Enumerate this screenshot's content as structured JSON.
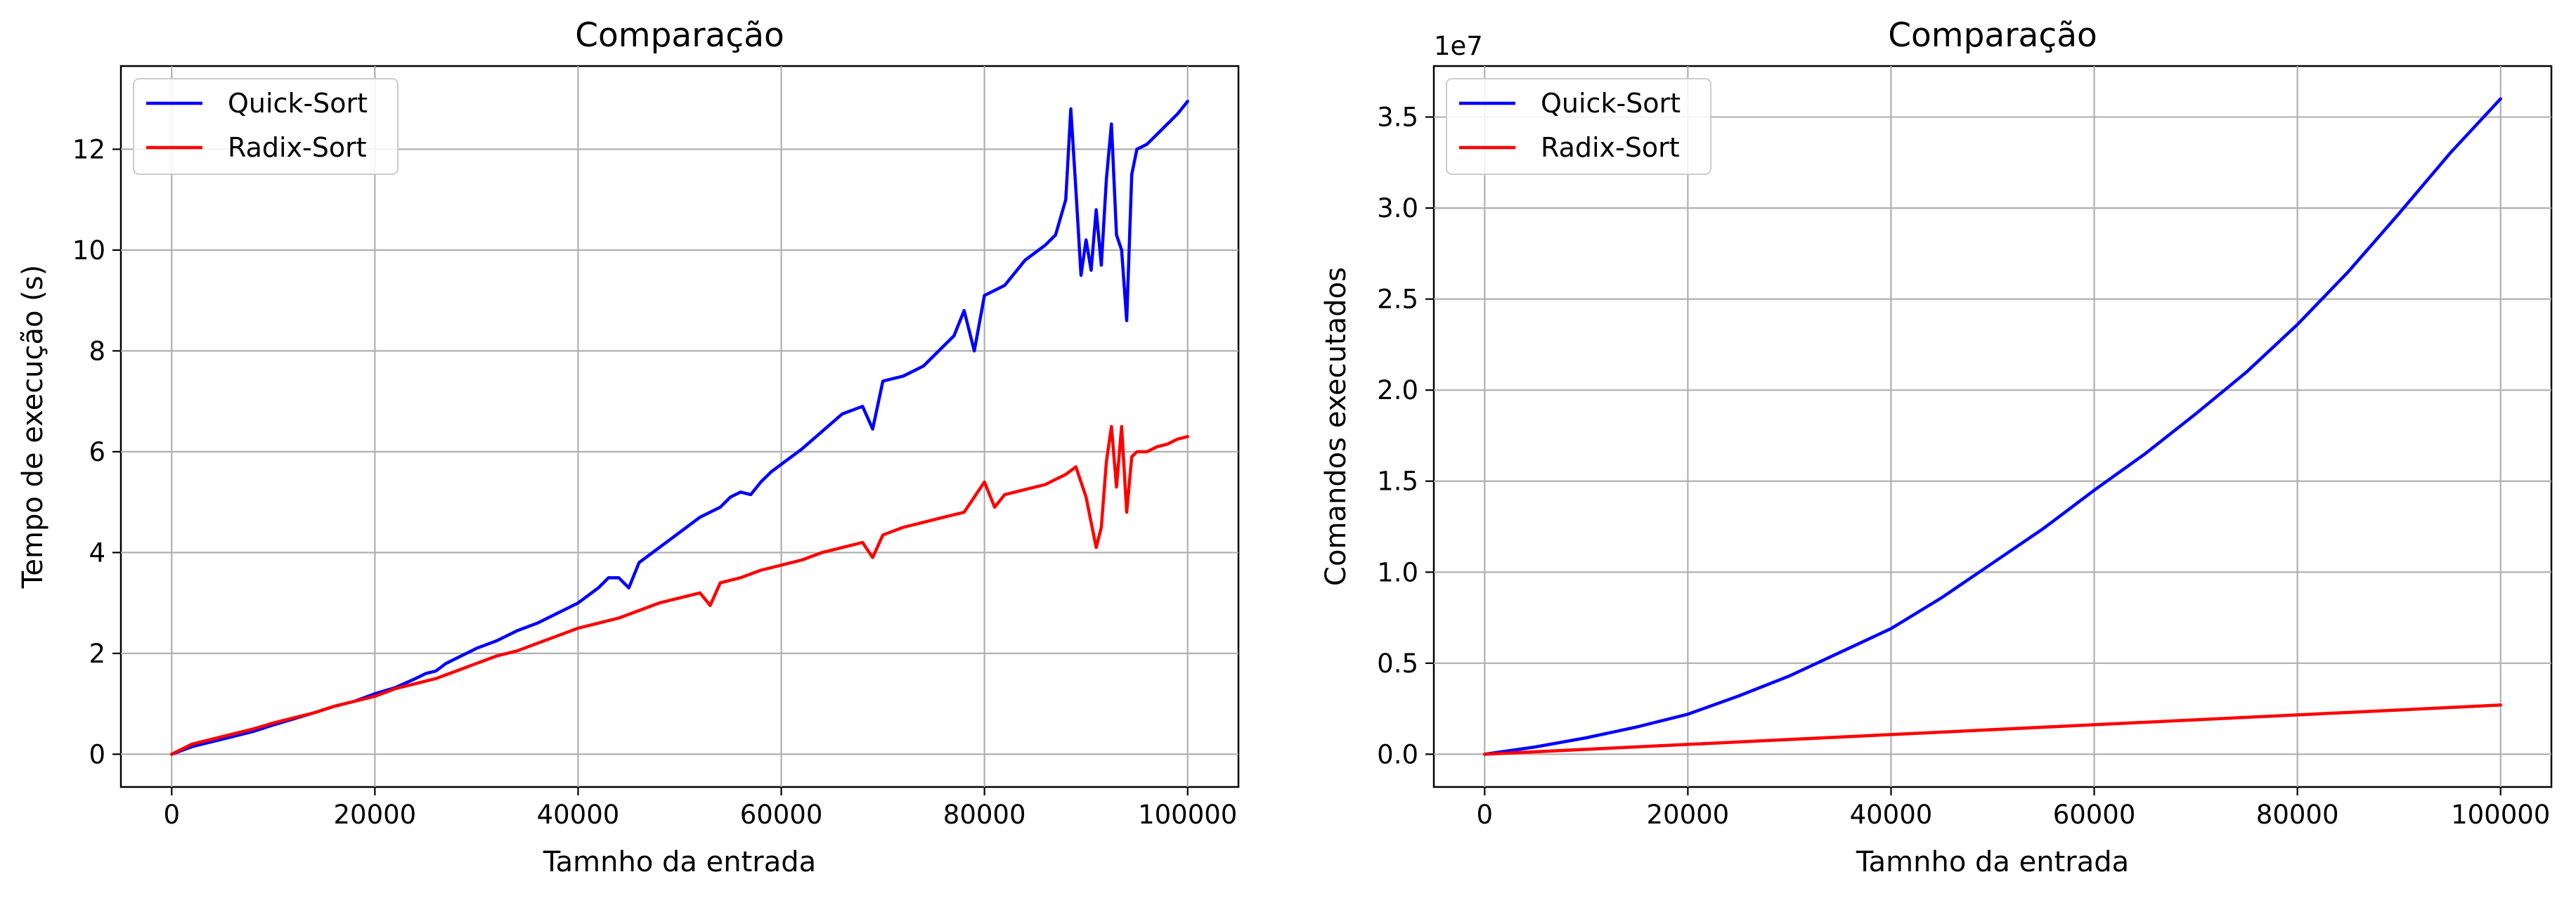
{
  "colors": {
    "quick": "#0000ff",
    "radix": "#ff0000",
    "grid": "#b0b0b0"
  },
  "chart_data": [
    {
      "type": "line",
      "title": "Comparação",
      "xlabel": "Tamnho da entrada",
      "ylabel": "Tempo de execução (s)",
      "xlim": [
        -5000,
        105000
      ],
      "ylim": [
        -0.65,
        13.65
      ],
      "xticks": [
        0,
        20000,
        40000,
        60000,
        80000,
        100000
      ],
      "xtick_labels": [
        "0",
        "20000",
        "40000",
        "60000",
        "80000",
        "100000"
      ],
      "yticks": [
        0,
        2,
        4,
        6,
        8,
        10,
        12
      ],
      "ytick_labels": [
        "0",
        "2",
        "4",
        "6",
        "8",
        "10",
        "12"
      ],
      "grid": true,
      "legend": "upper left",
      "series": [
        {
          "name": "Quick-Sort",
          "color": "blue",
          "x": [
            0,
            2000,
            4000,
            6000,
            8000,
            10000,
            12000,
            14000,
            16000,
            18000,
            20000,
            22000,
            24000,
            25000,
            26000,
            27000,
            28000,
            29000,
            30000,
            32000,
            34000,
            36000,
            38000,
            40000,
            42000,
            43000,
            44000,
            45000,
            46000,
            48000,
            50000,
            52000,
            54000,
            55000,
            56000,
            57000,
            58000,
            59000,
            60000,
            62000,
            64000,
            66000,
            68000,
            69000,
            70000,
            72000,
            74000,
            76000,
            77000,
            78000,
            79000,
            80000,
            82000,
            84000,
            86000,
            87000,
            88000,
            88500,
            89000,
            89500,
            90000,
            90500,
            91000,
            91500,
            92000,
            92500,
            93000,
            93500,
            94000,
            94500,
            95000,
            96000,
            97000,
            98000,
            99000,
            100000
          ],
          "y": [
            0,
            0.15,
            0.25,
            0.35,
            0.45,
            0.58,
            0.7,
            0.82,
            0.95,
            1.05,
            1.2,
            1.32,
            1.5,
            1.6,
            1.65,
            1.8,
            1.9,
            2.0,
            2.1,
            2.25,
            2.45,
            2.6,
            2.8,
            3.0,
            3.3,
            3.5,
            3.5,
            3.3,
            3.8,
            4.1,
            4.4,
            4.7,
            4.9,
            5.1,
            5.2,
            5.15,
            5.4,
            5.6,
            5.75,
            6.05,
            6.4,
            6.75,
            6.9,
            6.45,
            7.4,
            7.5,
            7.7,
            8.1,
            8.3,
            8.8,
            8.0,
            9.1,
            9.3,
            9.8,
            10.1,
            10.3,
            11.0,
            12.8,
            11.2,
            9.5,
            10.2,
            9.6,
            10.8,
            9.7,
            11.4,
            12.5,
            10.3,
            10.0,
            8.6,
            11.5,
            12.0,
            12.1,
            12.3,
            12.5,
            12.7,
            12.95
          ]
        },
        {
          "name": "Radix-Sort",
          "color": "red",
          "x": [
            0,
            2000,
            4000,
            6000,
            8000,
            10000,
            12000,
            14000,
            16000,
            18000,
            20000,
            22000,
            24000,
            26000,
            28000,
            30000,
            32000,
            34000,
            36000,
            38000,
            40000,
            42000,
            44000,
            46000,
            48000,
            50000,
            52000,
            53000,
            54000,
            56000,
            58000,
            60000,
            62000,
            64000,
            66000,
            68000,
            69000,
            70000,
            72000,
            74000,
            76000,
            78000,
            80000,
            81000,
            82000,
            84000,
            86000,
            87000,
            88000,
            89000,
            90000,
            90500,
            91000,
            91500,
            92000,
            92500,
            93000,
            93500,
            94000,
            94500,
            95000,
            96000,
            97000,
            98000,
            99000,
            100000
          ],
          "y": [
            0,
            0.2,
            0.3,
            0.4,
            0.5,
            0.62,
            0.72,
            0.82,
            0.95,
            1.05,
            1.15,
            1.3,
            1.4,
            1.5,
            1.65,
            1.8,
            1.95,
            2.05,
            2.2,
            2.35,
            2.5,
            2.6,
            2.7,
            2.85,
            3.0,
            3.1,
            3.2,
            2.95,
            3.4,
            3.5,
            3.65,
            3.75,
            3.85,
            4.0,
            4.1,
            4.2,
            3.9,
            4.35,
            4.5,
            4.6,
            4.7,
            4.8,
            5.4,
            4.9,
            5.15,
            5.25,
            5.35,
            5.45,
            5.55,
            5.7,
            5.1,
            4.6,
            4.1,
            4.5,
            5.8,
            6.5,
            5.3,
            6.5,
            4.8,
            5.9,
            6.0,
            6.0,
            6.1,
            6.15,
            6.25,
            6.3
          ]
        }
      ]
    },
    {
      "type": "line",
      "title": "Comparação",
      "xlabel": "Tamnho da entrada",
      "ylabel": "Comandos executados",
      "offset_text": "1e7",
      "xlim": [
        -5000,
        105000
      ],
      "ylim": [
        -0.18,
        3.78
      ],
      "xticks": [
        0,
        20000,
        40000,
        60000,
        80000,
        100000
      ],
      "xtick_labels": [
        "0",
        "20000",
        "40000",
        "60000",
        "80000",
        "100000"
      ],
      "yticks": [
        0,
        0.5,
        1.0,
        1.5,
        2.0,
        2.5,
        3.0,
        3.5
      ],
      "ytick_labels": [
        "0.0",
        "0.5",
        "1.0",
        "1.5",
        "2.0",
        "2.5",
        "3.0",
        "3.5"
      ],
      "grid": true,
      "legend": "upper left",
      "series": [
        {
          "name": "Quick-Sort",
          "color": "blue",
          "x": [
            0,
            5000,
            10000,
            15000,
            20000,
            25000,
            30000,
            35000,
            40000,
            45000,
            50000,
            55000,
            60000,
            65000,
            70000,
            75000,
            80000,
            85000,
            90000,
            95000,
            100000
          ],
          "y": [
            0,
            0.04,
            0.09,
            0.15,
            0.22,
            0.32,
            0.43,
            0.56,
            0.69,
            0.86,
            1.05,
            1.24,
            1.45,
            1.65,
            1.87,
            2.1,
            2.36,
            2.65,
            2.97,
            3.3,
            3.6
          ]
        },
        {
          "name": "Radix-Sort",
          "color": "red",
          "x": [
            0,
            100000
          ],
          "y": [
            0,
            0.27
          ]
        }
      ]
    }
  ]
}
